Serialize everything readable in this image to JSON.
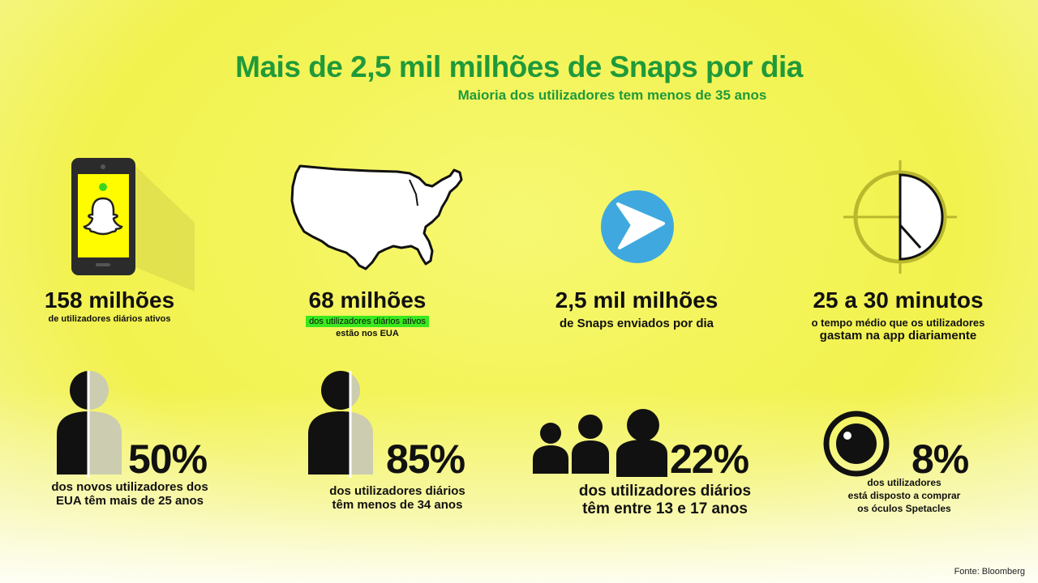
{
  "title": "Mais de 2,5 mil milhões de Snaps por dia",
  "subtitle": "Maioria dos utilizadores tem menos de 35 anos",
  "stats": [
    {
      "value": "158 milhões",
      "desc": "de utilizadores diários ativos"
    },
    {
      "value": "68 milhões",
      "desc_highlight": "dos utilizadores diários ativos",
      "desc": "estão nos EUA"
    },
    {
      "value": "2,5 mil milhões",
      "desc": "de Snaps enviados por dia"
    },
    {
      "value": "25 a 30 minutos",
      "desc_line1": "o tempo médio que os utilizadores",
      "desc_line2": "gastam na app diariamente"
    }
  ],
  "demographics": [
    {
      "value": "50%",
      "line1": "dos novos utilizadores dos",
      "line2": "EUA têm mais de 25 anos"
    },
    {
      "value": "85%",
      "line1": "dos utilizadores diários",
      "line2": "têm menos de 34 anos"
    },
    {
      "value": "22%",
      "line1": "dos utilizadores diários",
      "line2": "têm entre 13 e 17 anos"
    },
    {
      "value": "8%",
      "line1": "dos utilizadores",
      "line2": "está disposto a comprar",
      "line3": "os óculos Spetacles"
    }
  ],
  "source": "Fonte: Bloomberg",
  "colors": {
    "green": "#1f9a3a",
    "highlight": "#39e81f",
    "snap_yellow": "#fffc00",
    "arrow_blue": "#3fa9df"
  },
  "icons": [
    "phone-snapchat-icon",
    "usa-map-icon",
    "send-arrow-icon",
    "clock-dial-icon",
    "person-half-icon",
    "person-partial-icon",
    "three-people-icon",
    "camera-lens-icon"
  ]
}
